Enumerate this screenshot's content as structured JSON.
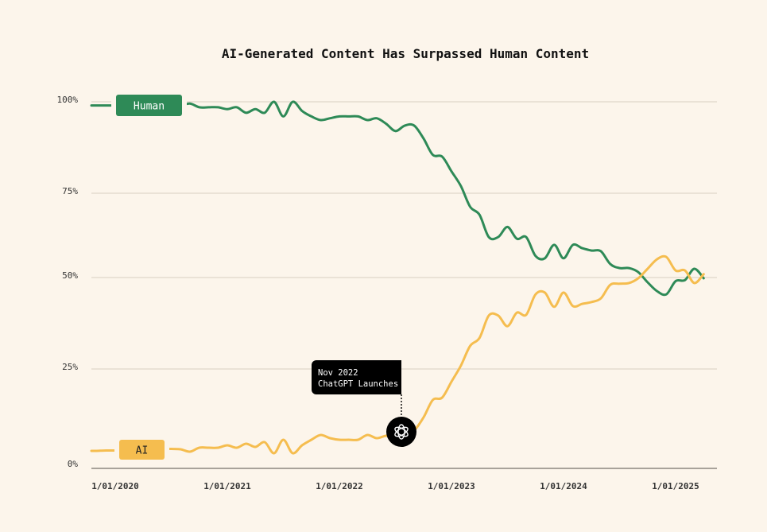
{
  "chart_data": {
    "type": "line",
    "title": "AI-Generated Content Has Surpassed Human Content",
    "xlabel": "",
    "ylabel": "",
    "x_ticks": [
      "1/01/2020",
      "1/01/2021",
      "1/01/2022",
      "1/01/2023",
      "1/01/2024",
      "1/01/2025"
    ],
    "y_ticks": [
      "0%",
      "25%",
      "50%",
      "75%",
      "100%"
    ],
    "ylim": [
      0,
      100
    ],
    "grid": true,
    "x_start": "2019-11",
    "x_step": "month",
    "series": [
      {
        "name": "Human",
        "color": "#2e8a57",
        "values": [
          99,
          99,
          99,
          99,
          99,
          99,
          99,
          99,
          99,
          99,
          99.5,
          98.5,
          98.5,
          98.5,
          98,
          98.5,
          97,
          98,
          97,
          100,
          96,
          100,
          97.5,
          96,
          95,
          95.5,
          96,
          96,
          96,
          95,
          95.5,
          94,
          92,
          93.5,
          93.5,
          90,
          85.5,
          85,
          81,
          77,
          71,
          68.6,
          62,
          62,
          65,
          61.5,
          62,
          56.4,
          55.7,
          59.7,
          55.7,
          59.7,
          58.7,
          58,
          57.8,
          54,
          52.8,
          52.8,
          51.6,
          48.7,
          46.3,
          45.4,
          49,
          49.3,
          52.6,
          49.8
        ]
      },
      {
        "name": "AI",
        "color": "#f5bd4f",
        "values": [
          4.4,
          4.5,
          4.5,
          4.6,
          4.8,
          5.4,
          5.2,
          5,
          4.9,
          4.8,
          4.2,
          5.2,
          5.2,
          5.2,
          5.8,
          5.2,
          6.2,
          5.4,
          6.6,
          3.8,
          7.2,
          3.8,
          5.8,
          7.2,
          8.4,
          7.6,
          7.2,
          7.2,
          7.2,
          8.4,
          7.6,
          8.2,
          8,
          9.6,
          9.6,
          12.8,
          17.2,
          17.8,
          21.8,
          25.9,
          31.3,
          33.5,
          39.6,
          39.6,
          36.7,
          40.4,
          39.8,
          45.4,
          45.9,
          42,
          45.9,
          42.2,
          42.8,
          43.3,
          44.3,
          48,
          48.3,
          48.5,
          49.8,
          52.6,
          55.4,
          56.1,
          52.1,
          52.1,
          48.5,
          51
        ]
      }
    ],
    "annotation": {
      "line1": "Nov 2022",
      "line2": "ChatGPT Launches",
      "icon": "openai-logo-icon"
    },
    "colors": {
      "background": "#fcf5eb",
      "grid": "#d9d0c2",
      "axis": "#a8a29a"
    }
  }
}
